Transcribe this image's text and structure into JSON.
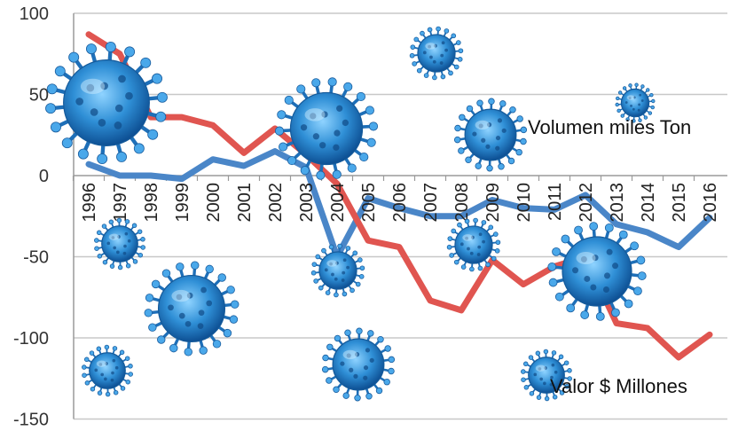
{
  "chart_data": {
    "type": "line",
    "title": "",
    "xlabel": "",
    "ylabel": "",
    "x": [
      "1996",
      "1997",
      "1998",
      "1999",
      "2000",
      "2001",
      "2002",
      "2003",
      "2004",
      "2005",
      "2006",
      "2007",
      "2008",
      "2009",
      "2010",
      "2011",
      "2012",
      "2013",
      "2014",
      "2015",
      "2016"
    ],
    "ylim": [
      -150,
      100
    ],
    "yticks": [
      100,
      50,
      0,
      -50,
      -100,
      -150
    ],
    "grid": true,
    "series": [
      {
        "name": "Volumen miles Ton",
        "color": "#4a86c8",
        "values": [
          7,
          0,
          0,
          -2,
          10,
          6,
          15,
          5,
          -50,
          -14,
          -20,
          -25,
          -25,
          -15,
          -20,
          -21,
          -12,
          -30,
          -35,
          -44,
          -26
        ]
      },
      {
        "name": "Valor $ Millones",
        "color": "#e05550",
        "values": [
          87,
          75,
          36,
          36,
          31,
          14,
          29,
          13,
          -5,
          -40,
          -44,
          -77,
          -83,
          -52,
          -67,
          -56,
          -50,
          -91,
          -94,
          -112,
          -98
        ]
      }
    ],
    "annotations": [
      "Volumen miles Ton",
      "Valor $ Millones"
    ],
    "decoration": "virus-icon"
  }
}
